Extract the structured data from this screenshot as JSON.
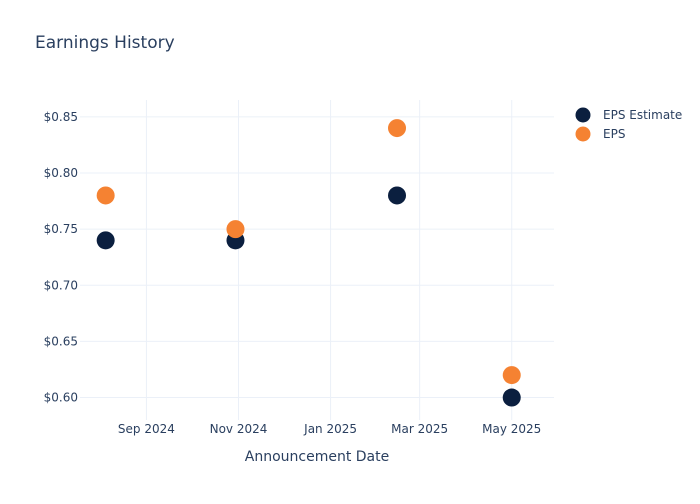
{
  "chart_data": {
    "type": "scatter",
    "title": "Earnings History",
    "xlabel": "Announcement Date",
    "ylabel": "",
    "x_ticks": [
      "Sep 2024",
      "Nov 2024",
      "Jan 2025",
      "Mar 2025",
      "May 2025"
    ],
    "y_ticks": [
      "$0.60",
      "$0.65",
      "$0.70",
      "$0.75",
      "$0.80",
      "$0.85"
    ],
    "ylim": [
      0.58,
      0.865
    ],
    "xlim": [
      "2024-07-19",
      "2025-05-29"
    ],
    "x": [
      "2024-08-05",
      "2024-10-30",
      "2025-02-14",
      "2025-05-01"
    ],
    "series": [
      {
        "name": "EPS Estimate",
        "color": "#0b1f3f",
        "values": [
          0.74,
          0.74,
          0.78,
          0.6
        ]
      },
      {
        "name": "EPS",
        "color": "#f58232",
        "values": [
          0.78,
          0.75,
          0.84,
          0.62
        ]
      }
    ],
    "grid": true,
    "legend": "top-right"
  }
}
